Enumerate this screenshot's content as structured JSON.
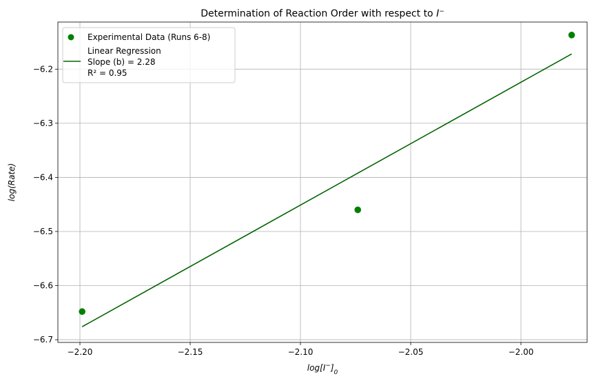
{
  "chart_data": {
    "type": "scatter",
    "title_prefix": "Determination of Reaction Order with respect to ",
    "title_symbol": "I",
    "title_superscript": "−",
    "xlabel_prefix": "log[I",
    "xlabel_superscript": "−",
    "xlabel_suffix": "]",
    "xlabel_subscript": "0",
    "ylabel": "log(Rate)",
    "xlim": [
      -2.21,
      -1.97
    ],
    "ylim": [
      -6.705,
      -6.113
    ],
    "xticks": [
      -2.2,
      -2.15,
      -2.1,
      -2.05,
      -2.0
    ],
    "xtick_labels": [
      "−2.20",
      "−2.15",
      "−2.10",
      "−2.05",
      "−2.00"
    ],
    "yticks": [
      -6.7,
      -6.6,
      -6.5,
      -6.4,
      -6.3,
      -6.2
    ],
    "ytick_labels": [
      "−6.7",
      "−6.6",
      "−6.5",
      "−6.4",
      "−6.3",
      "−6.2"
    ],
    "grid": true,
    "legend_position": "top-left",
    "series": [
      {
        "name": "Experimental Data (Runs 6-8)",
        "kind": "scatter",
        "color": "#008000",
        "x": [
          -2.199,
          -2.074,
          -1.977
        ],
        "y": [
          -6.648,
          -6.46,
          -6.137
        ]
      },
      {
        "name_lines": [
          "Linear Regression",
          "Slope (b) = 2.28",
          "R² = 0.95"
        ],
        "kind": "line",
        "color": "#006400",
        "x": [
          -2.199,
          -1.977
        ],
        "y": [
          -6.676,
          -6.172
        ]
      }
    ]
  }
}
